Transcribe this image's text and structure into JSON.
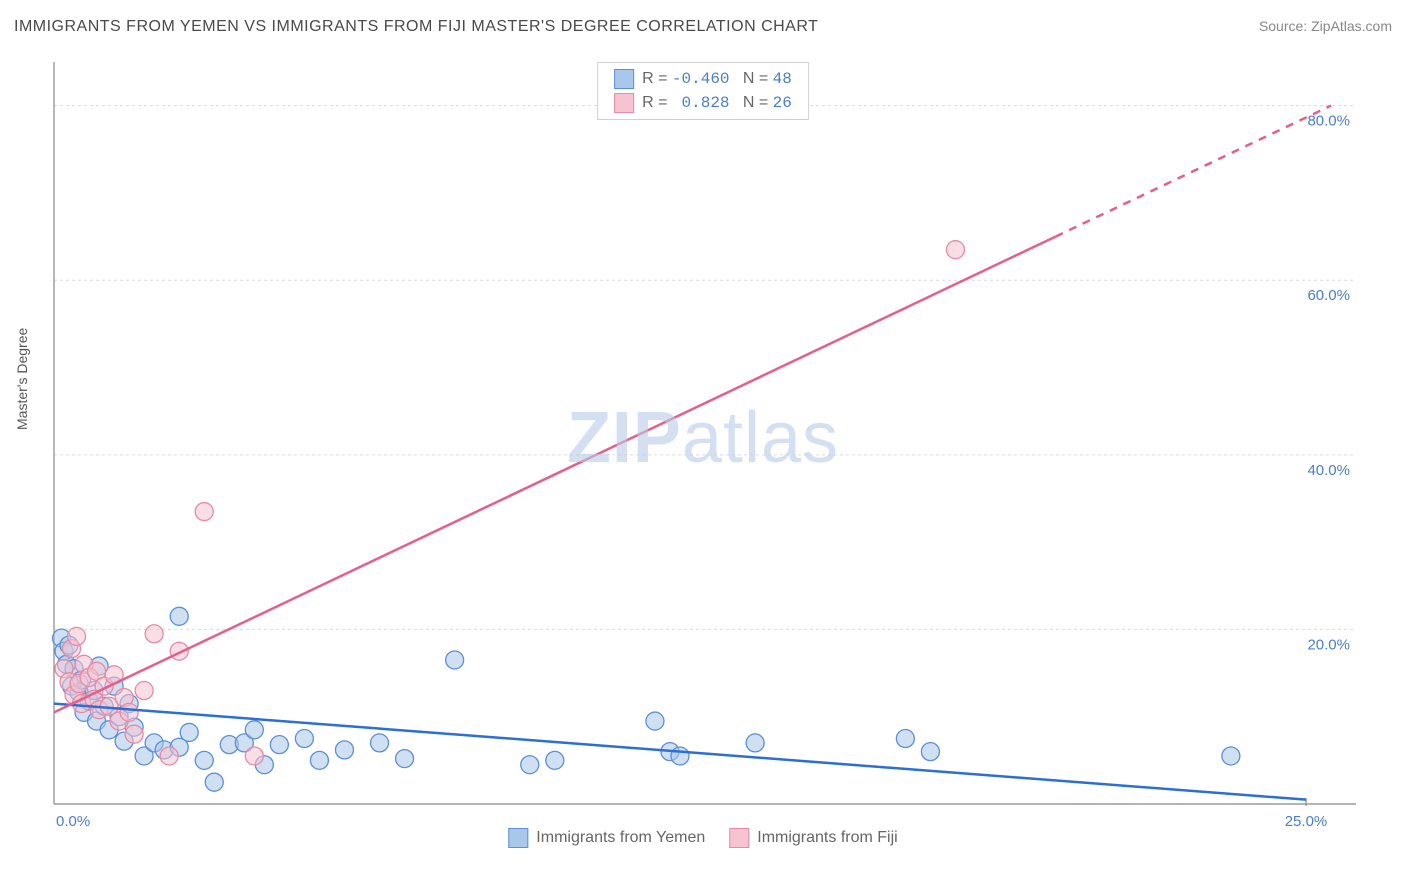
{
  "title": "IMMIGRANTS FROM YEMEN VS IMMIGRANTS FROM FIJI MASTER'S DEGREE CORRELATION CHART",
  "source_label": "Source: ZipAtlas.com",
  "y_axis_label": "Master's Degree",
  "watermark": "ZIPatlas",
  "chart": {
    "type": "scatter",
    "xlim": [
      0,
      25
    ],
    "ylim": [
      0,
      85
    ],
    "x_ticks": [
      {
        "v": 0,
        "l": "0.0%"
      },
      {
        "v": 25,
        "l": "25.0%"
      }
    ],
    "y_ticks": [
      {
        "v": 20,
        "l": "20.0%"
      },
      {
        "v": 40,
        "l": "40.0%"
      },
      {
        "v": 60,
        "l": "60.0%"
      },
      {
        "v": 80,
        "l": "80.0%"
      }
    ],
    "background_color": "#ffffff",
    "grid_color": "#dcdcdc",
    "axis_color": "#888888",
    "tick_font_size": 15,
    "tick_color": "#4a7ec9",
    "marker_radius": 9,
    "marker_opacity": 0.55,
    "line_width": 2.5,
    "series": [
      {
        "name": "Immigrants from Yemen",
        "color_fill": "#a9c7ea",
        "color_stroke": "#5b8fd6",
        "line_color": "#2b6fd6",
        "r_value": "-0.460",
        "n_value": "48",
        "trend": {
          "x1": 0,
          "y1": 11.5,
          "x2": 25,
          "y2": 0.5,
          "dash": false
        },
        "points": [
          [
            0.15,
            19.0
          ],
          [
            0.2,
            17.5
          ],
          [
            0.25,
            16.0
          ],
          [
            0.3,
            18.2
          ],
          [
            0.35,
            13.5
          ],
          [
            0.4,
            15.5
          ],
          [
            0.5,
            12.8
          ],
          [
            0.55,
            14.2
          ],
          [
            0.6,
            10.5
          ],
          [
            0.7,
            11.8
          ],
          [
            0.8,
            13.0
          ],
          [
            0.85,
            9.5
          ],
          [
            0.9,
            15.8
          ],
          [
            1.0,
            11.2
          ],
          [
            1.1,
            8.5
          ],
          [
            1.2,
            13.5
          ],
          [
            1.3,
            10.0
          ],
          [
            1.4,
            7.2
          ],
          [
            1.5,
            11.5
          ],
          [
            1.6,
            8.8
          ],
          [
            1.8,
            5.5
          ],
          [
            2.0,
            7.0
          ],
          [
            2.2,
            6.2
          ],
          [
            2.5,
            21.5
          ],
          [
            2.5,
            6.5
          ],
          [
            2.7,
            8.2
          ],
          [
            3.0,
            5.0
          ],
          [
            3.2,
            2.5
          ],
          [
            3.5,
            6.8
          ],
          [
            3.8,
            7.0
          ],
          [
            4.0,
            8.5
          ],
          [
            4.2,
            4.5
          ],
          [
            4.5,
            6.8
          ],
          [
            5.0,
            7.5
          ],
          [
            5.3,
            5.0
          ],
          [
            5.8,
            6.2
          ],
          [
            6.5,
            7.0
          ],
          [
            7.0,
            5.2
          ],
          [
            8.0,
            16.5
          ],
          [
            9.5,
            4.5
          ],
          [
            10.0,
            5.0
          ],
          [
            12.0,
            9.5
          ],
          [
            12.3,
            6.0
          ],
          [
            12.5,
            5.5
          ],
          [
            14.0,
            7.0
          ],
          [
            17.0,
            7.5
          ],
          [
            17.5,
            6.0
          ],
          [
            23.5,
            5.5
          ]
        ]
      },
      {
        "name": "Immigrants from Fiji",
        "color_fill": "#f6c3d0",
        "color_stroke": "#e889a5",
        "line_color": "#e65f8a",
        "r_value": " 0.828",
        "n_value": "26",
        "trend": {
          "x1": 0,
          "y1": 10.5,
          "x2": 20,
          "y2": 65,
          "dash_from_x": 20
        },
        "trend_dash": {
          "x1": 20,
          "y1": 65,
          "x2": 25.5,
          "y2": 80
        },
        "points": [
          [
            0.2,
            15.5
          ],
          [
            0.3,
            14.0
          ],
          [
            0.35,
            17.8
          ],
          [
            0.4,
            12.5
          ],
          [
            0.45,
            19.2
          ],
          [
            0.5,
            13.8
          ],
          [
            0.55,
            11.5
          ],
          [
            0.6,
            16.0
          ],
          [
            0.7,
            14.5
          ],
          [
            0.8,
            12.0
          ],
          [
            0.85,
            15.2
          ],
          [
            0.9,
            10.8
          ],
          [
            1.0,
            13.5
          ],
          [
            1.1,
            11.2
          ],
          [
            1.2,
            14.8
          ],
          [
            1.3,
            9.5
          ],
          [
            1.4,
            12.2
          ],
          [
            1.5,
            10.5
          ],
          [
            1.6,
            8.0
          ],
          [
            1.8,
            13.0
          ],
          [
            2.0,
            19.5
          ],
          [
            2.5,
            17.5
          ],
          [
            2.3,
            5.5
          ],
          [
            3.0,
            33.5
          ],
          [
            4.0,
            5.5
          ],
          [
            18.0,
            63.5
          ]
        ]
      }
    ]
  },
  "legend_bottom": [
    {
      "label": "Immigrants from Yemen",
      "fill": "#a9c7ea",
      "stroke": "#5b8fd6"
    },
    {
      "label": "Immigrants from Fiji",
      "fill": "#f6c3d0",
      "stroke": "#e889a5"
    }
  ]
}
